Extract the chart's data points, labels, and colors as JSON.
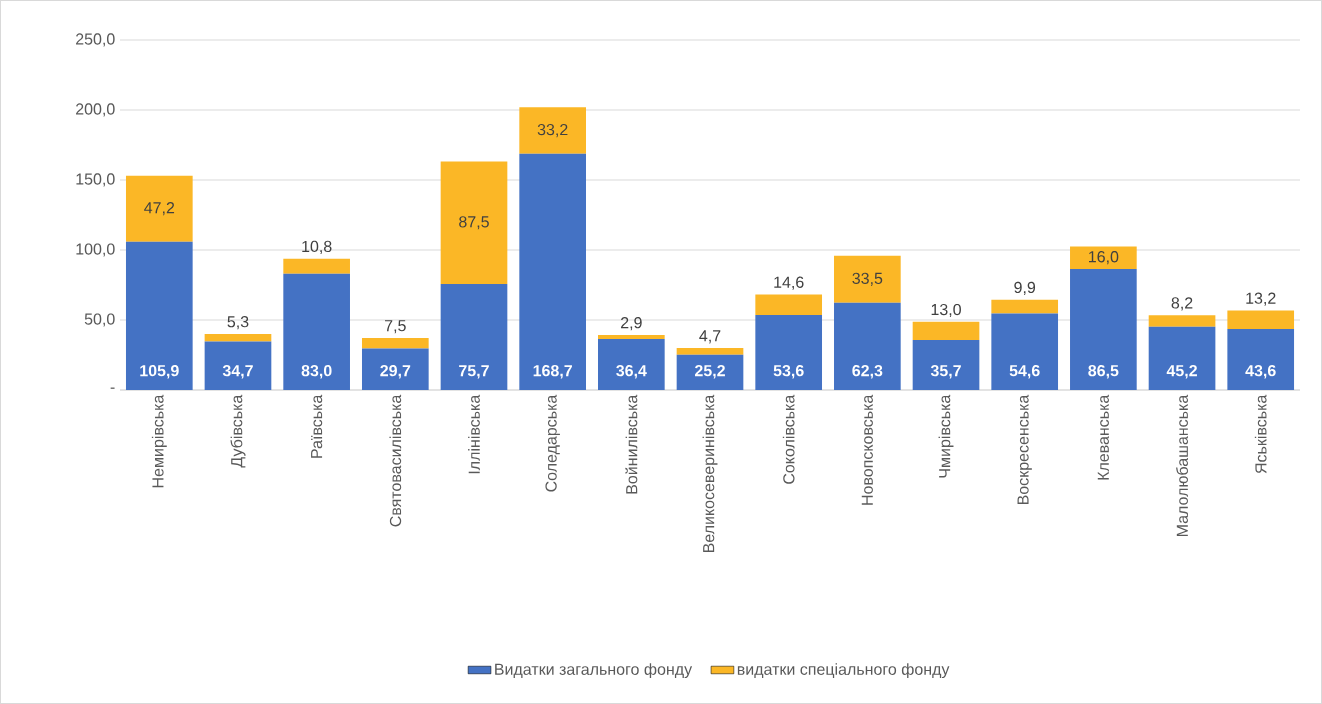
{
  "chart_data": {
    "type": "bar",
    "stacked": true,
    "categories": [
      "Немирівська",
      "Дубівська",
      "Раївська",
      "Святовасилівська",
      "Іллінівська",
      "Соледарська",
      "Войнилівська",
      "Великосеверинівська",
      "Соколівська",
      "Новопсковська",
      "Чмирівська",
      "Воскресенська",
      "Клеванська",
      "Малолюбашанська",
      "Яськівська"
    ],
    "series": [
      {
        "name": "Видатки загального фонду",
        "color": "#4472c4",
        "values": [
          105.9,
          34.7,
          83.0,
          29.7,
          75.7,
          168.7,
          36.4,
          25.2,
          53.6,
          62.3,
          35.7,
          54.6,
          86.5,
          45.2,
          43.6
        ],
        "value_labels": [
          "105,9",
          "34,7",
          "83,0",
          "29,7",
          "75,7",
          "168,7",
          "36,4",
          "25,2",
          "53,6",
          "62,3",
          "35,7",
          "54,6",
          "86,5",
          "45,2",
          "43,6"
        ]
      },
      {
        "name": "видатки спеціального фонду",
        "color": "#fbb726",
        "values": [
          47.2,
          5.3,
          10.8,
          7.5,
          87.5,
          33.2,
          2.9,
          4.7,
          14.6,
          33.5,
          13.0,
          9.9,
          16.0,
          8.2,
          13.2
        ],
        "value_labels": [
          "47,2",
          "5,3",
          "10,8",
          "7,5",
          "87,5",
          "33,2",
          "2,9",
          "4,7",
          "14,6",
          "33,5",
          "13,0",
          "9,9",
          "16,0",
          "8,2",
          "13,2"
        ]
      }
    ],
    "ylim": [
      0,
      250
    ],
    "yticks": [
      {
        "value": 0,
        "label": "-"
      },
      {
        "value": 50,
        "label": "50,0"
      },
      {
        "value": 100,
        "label": "100,0"
      },
      {
        "value": 150,
        "label": "150,0"
      },
      {
        "value": 200,
        "label": "200,0"
      },
      {
        "value": 250,
        "label": "250,0"
      }
    ],
    "grid": "y",
    "legend": "bottom"
  }
}
